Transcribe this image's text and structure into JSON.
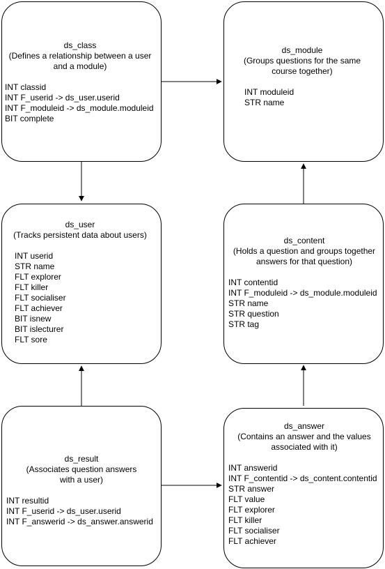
{
  "diagram": {
    "boxes": {
      "ds_class": {
        "title": "ds_class",
        "description_lines": [
          "(Defines a relationship between a user",
          "and a module)"
        ],
        "fields": [
          "INT classid",
          "INT F_userid -> ds_user.userid",
          "INT F_moduleid -> ds_module.moduleid",
          "BIT complete"
        ]
      },
      "ds_module": {
        "title": "ds_module",
        "description_lines": [
          "(Groups questions for the same",
          "course together)"
        ],
        "fields": [
          "INT moduleid",
          "STR name"
        ]
      },
      "ds_user": {
        "title": "ds_user",
        "description_lines": [
          "(Tracks persistent data about users)"
        ],
        "fields": [
          "INT userid",
          "STR name",
          "FLT explorer",
          "FLT killer",
          "FLT socialiser",
          "FLT achiever",
          "BIT isnew",
          "BIT islecturer",
          "FLT sore"
        ]
      },
      "ds_content": {
        "title": "ds_content",
        "description_lines": [
          "(Holds a question and groups together",
          "answers for that question)"
        ],
        "fields": [
          "INT contentid",
          "INT F_moduleid -> ds_module.moduleid",
          "STR name",
          "STR question",
          "STR tag"
        ]
      },
      "ds_result": {
        "title": "ds_result",
        "description_lines": [
          "(Associates question answers",
          "with a user)"
        ],
        "fields": [
          "INT resultid",
          "INT F_userid -> ds_user.userid",
          "INT F_answerid -> ds_answer.answerid"
        ]
      },
      "ds_answer": {
        "title": "ds_answer",
        "description_lines": [
          "(Contains an answer and the values",
          "associated with it)"
        ],
        "fields": [
          "INT answerid",
          "INT F_contentid -> ds_content.contentid",
          "STR answer",
          "FLT value",
          "FLT explorer",
          "FLT killer",
          "FLT socialiser",
          "FLT achiever"
        ]
      }
    },
    "edges": [
      {
        "from": "ds_class",
        "to": "ds_module"
      },
      {
        "from": "ds_class",
        "to": "ds_user"
      },
      {
        "from": "ds_content",
        "to": "ds_module"
      },
      {
        "from": "ds_result",
        "to": "ds_user"
      },
      {
        "from": "ds_result",
        "to": "ds_answer"
      },
      {
        "from": "ds_answer",
        "to": "ds_content"
      }
    ],
    "colors": {
      "stroke": "#000000",
      "fill": "#ffffff",
      "text": "#000000"
    }
  }
}
